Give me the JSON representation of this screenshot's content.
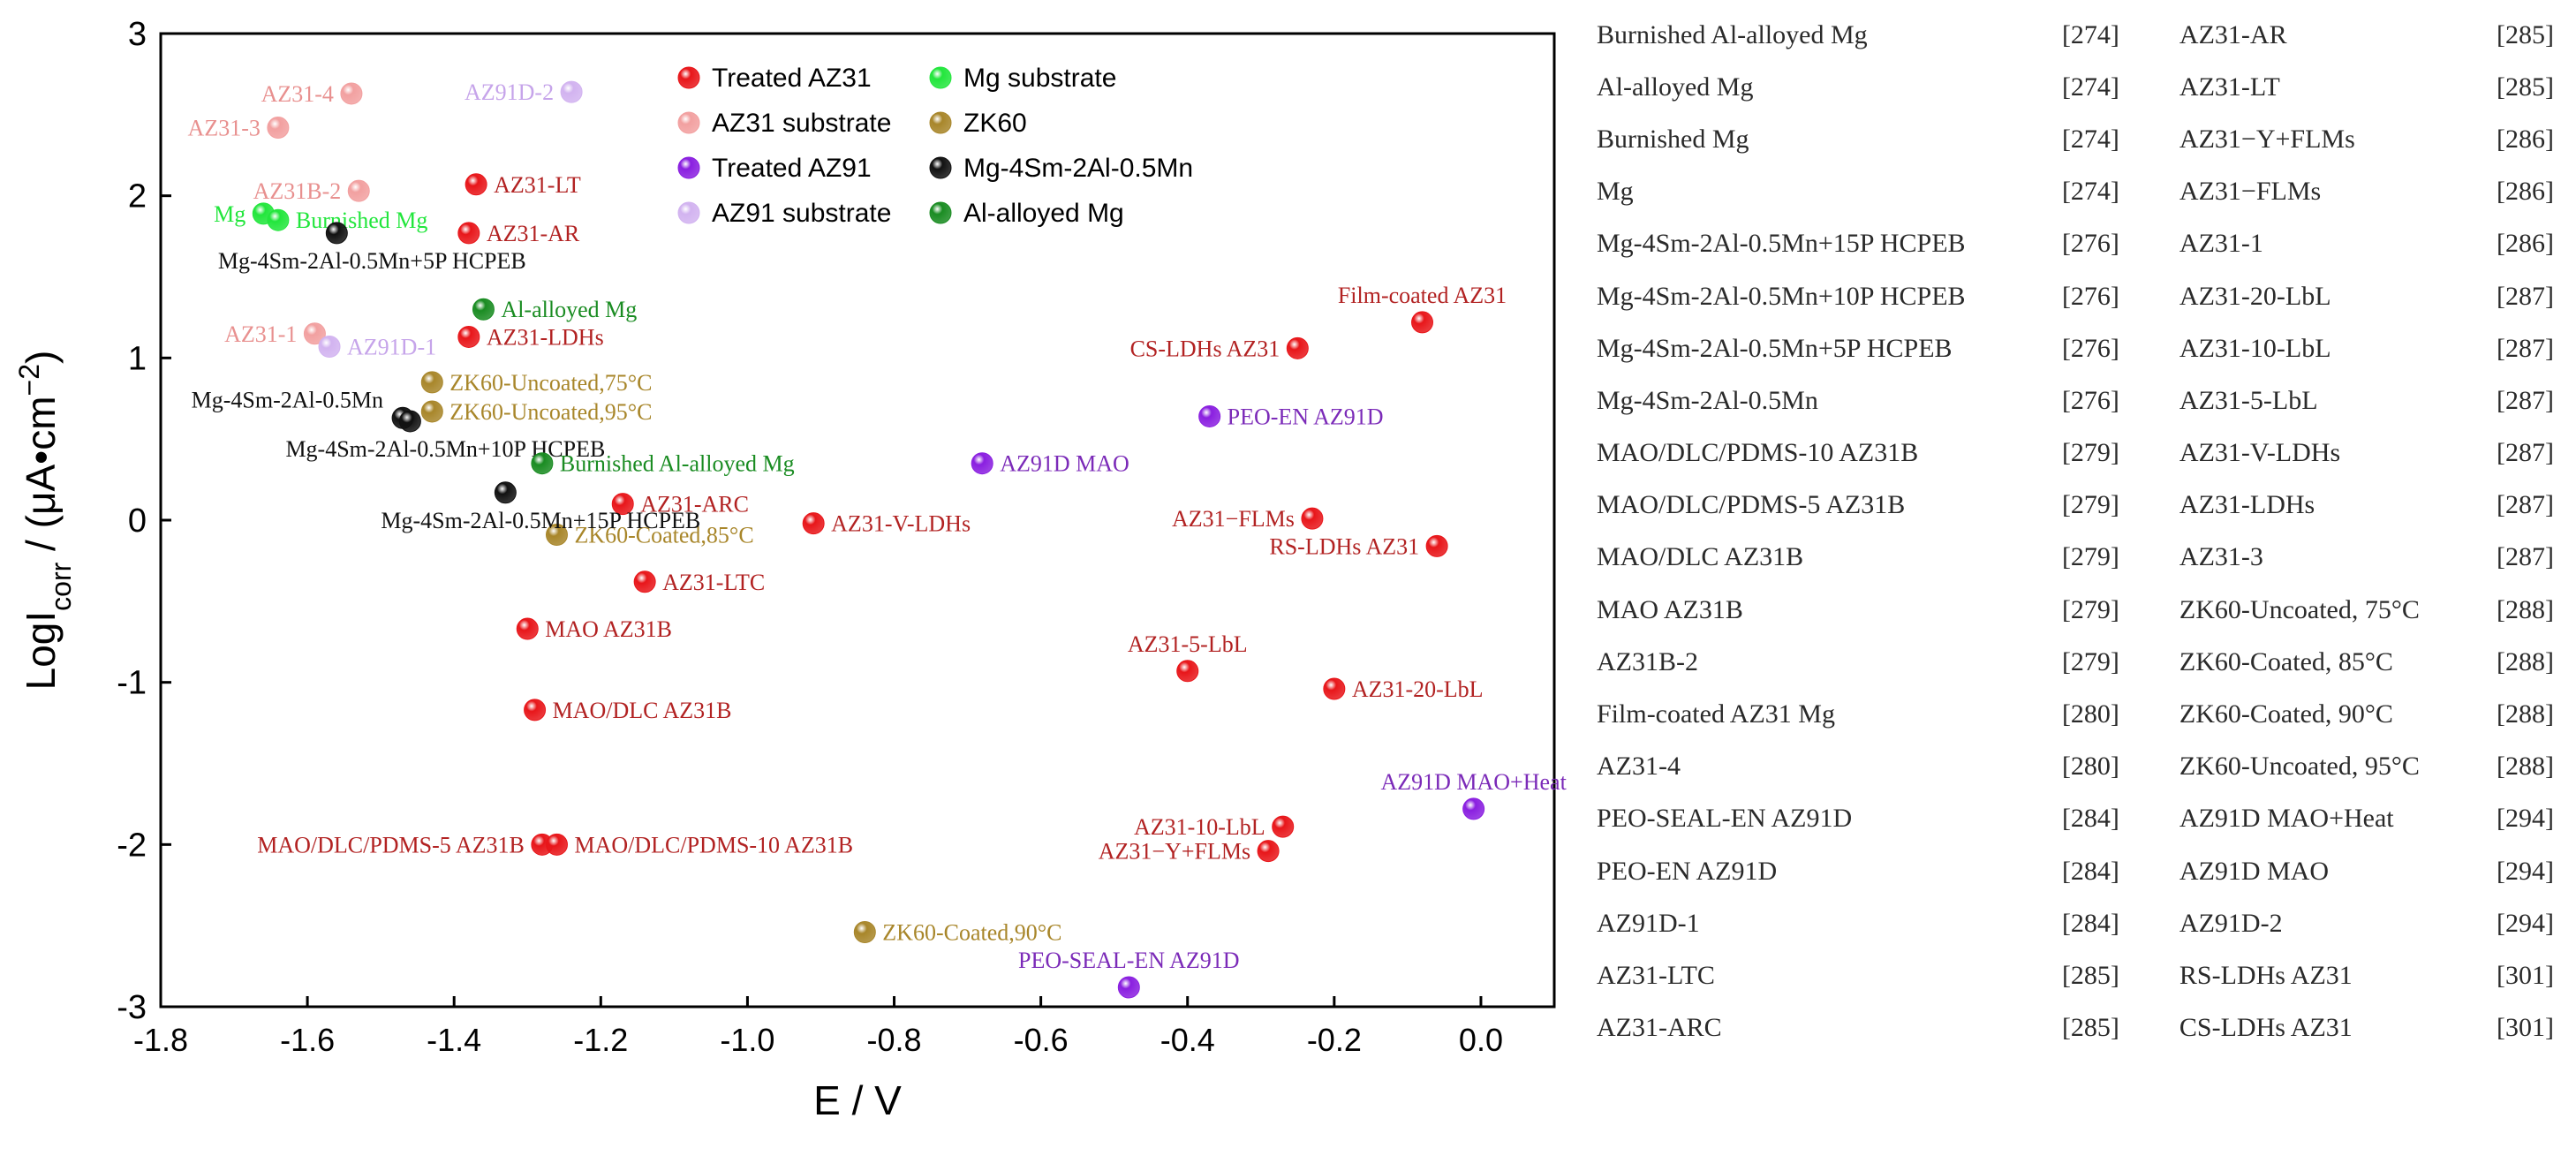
{
  "chart_data": {
    "type": "scatter",
    "xlabel": "E / V",
    "ylabel": "LogI_corr / (μA•cm^-2)",
    "xlim": [
      -1.8,
      0.1
    ],
    "ylim": [
      -3,
      3
    ],
    "xticks": [
      "-1.8",
      "-1.6",
      "-1.4",
      "-1.2",
      "-1.0",
      "-0.8",
      "-0.6",
      "-0.4",
      "-0.2",
      "0.0"
    ],
    "yticks": [
      "3",
      "2",
      "1",
      "0",
      "-1",
      "-2",
      "-3"
    ],
    "grid": false,
    "legend_position": "top-center",
    "legend": [
      {
        "name": "Treated AZ31",
        "color": "#e8161a"
      },
      {
        "name": "AZ31 substrate",
        "color": "#f2a0a0"
      },
      {
        "name": "Treated AZ91",
        "color": "#8a1fe0"
      },
      {
        "name": "AZ91 substrate",
        "color": "#d2b3f0"
      },
      {
        "name": "Mg substrate",
        "color": "#22e63c"
      },
      {
        "name": "ZK60",
        "color": "#a8862a"
      },
      {
        "name": "Mg-4Sm-2Al-0.5Mn",
        "color": "#111111"
      },
      {
        "name": "Al-alloyed Mg",
        "color": "#1a8c22"
      }
    ],
    "series": [
      {
        "name": "Treated AZ31",
        "color": "#e8161a",
        "label_color": "#b22222",
        "points": [
          {
            "label": "AZ31-LT",
            "x": -1.37,
            "y": 2.07,
            "anchor": "right"
          },
          {
            "label": "AZ31-AR",
            "x": -1.38,
            "y": 1.77,
            "anchor": "right"
          },
          {
            "label": "AZ31-LDHs",
            "x": -1.38,
            "y": 1.13,
            "anchor": "right"
          },
          {
            "label": "AZ31-ARC",
            "x": -1.17,
            "y": 0.1,
            "anchor": "right"
          },
          {
            "label": "AZ31-V-LDHs",
            "x": -0.91,
            "y": -0.02,
            "anchor": "right"
          },
          {
            "label": "AZ31-LTC",
            "x": -1.14,
            "y": -0.38,
            "anchor": "right"
          },
          {
            "label": "MAO AZ31B",
            "x": -1.3,
            "y": -0.67,
            "anchor": "right"
          },
          {
            "label": "MAO/DLC AZ31B",
            "x": -1.29,
            "y": -1.17,
            "anchor": "right"
          },
          {
            "label": "MAO/DLC/PDMS-5 AZ31B",
            "x": -1.28,
            "y": -2.0,
            "anchor": "left"
          },
          {
            "label": "MAO/DLC/PDMS-10 AZ31B",
            "x": -1.26,
            "y": -2.0,
            "anchor": "right"
          },
          {
            "label": "Film-coated AZ31",
            "x": -0.08,
            "y": 1.22,
            "anchor": "above"
          },
          {
            "label": "CS-LDHs AZ31",
            "x": -0.25,
            "y": 1.06,
            "anchor": "left"
          },
          {
            "label": "AZ31−FLMs",
            "x": -0.23,
            "y": 0.01,
            "anchor": "left"
          },
          {
            "label": "RS-LDHs AZ31",
            "x": -0.06,
            "y": -0.16,
            "anchor": "left"
          },
          {
            "label": "AZ31-5-LbL",
            "x": -0.4,
            "y": -0.93,
            "anchor": "above"
          },
          {
            "label": "AZ31-20-LbL",
            "x": -0.2,
            "y": -1.04,
            "anchor": "right"
          },
          {
            "label": "AZ31-10-LbL",
            "x": -0.27,
            "y": -1.89,
            "anchor": "left"
          },
          {
            "label": "AZ31−Y+FLMs",
            "x": -0.29,
            "y": -2.04,
            "anchor": "left"
          }
        ]
      },
      {
        "name": "AZ31 substrate",
        "color": "#f2a0a0",
        "label_color": "#e8908f",
        "points": [
          {
            "label": "AZ31-4",
            "x": -1.54,
            "y": 2.63,
            "anchor": "left"
          },
          {
            "label": "AZ31-3",
            "x": -1.64,
            "y": 2.42,
            "anchor": "left"
          },
          {
            "label": "AZ31B-2",
            "x": -1.53,
            "y": 2.03,
            "anchor": "left"
          },
          {
            "label": "AZ31-1",
            "x": -1.59,
            "y": 1.15,
            "anchor": "left"
          }
        ]
      },
      {
        "name": "Treated AZ91",
        "color": "#8a1fe0",
        "label_color": "#7b2ab8",
        "points": [
          {
            "label": "PEO-EN AZ91D",
            "x": -0.37,
            "y": 0.64,
            "anchor": "right"
          },
          {
            "label": "AZ91D MAO",
            "x": -0.68,
            "y": 0.35,
            "anchor": "right"
          },
          {
            "label": "AZ91D MAO+Heat",
            "x": -0.01,
            "y": -1.78,
            "anchor": "above"
          },
          {
            "label": "PEO-SEAL-EN AZ91D",
            "x": -0.48,
            "y": -2.88,
            "anchor": "above"
          }
        ]
      },
      {
        "name": "AZ91 substrate",
        "color": "#d2b3f0",
        "label_color": "#c6a4ea",
        "points": [
          {
            "label": "AZ91D-2",
            "x": -1.24,
            "y": 2.64,
            "anchor": "left"
          },
          {
            "label": "AZ91D-1",
            "x": -1.57,
            "y": 1.07,
            "anchor": "right"
          }
        ]
      },
      {
        "name": "Mg substrate",
        "color": "#22e63c",
        "label_color": "#22e63c",
        "points": [
          {
            "label": "Mg",
            "x": -1.66,
            "y": 1.89,
            "anchor": "left"
          },
          {
            "label": "Burnished Mg",
            "x": -1.64,
            "y": 1.85,
            "anchor": "right"
          }
        ]
      },
      {
        "name": "ZK60",
        "color": "#a8862a",
        "label_color": "#a8862a",
        "points": [
          {
            "label": "ZK60-Uncoated,75°C",
            "x": -1.43,
            "y": 0.85,
            "anchor": "right"
          },
          {
            "label": "ZK60-Uncoated,95°C",
            "x": -1.43,
            "y": 0.67,
            "anchor": "right"
          },
          {
            "label": "ZK60-Coated,85°C",
            "x": -1.26,
            "y": -0.09,
            "anchor": "right"
          },
          {
            "label": "ZK60-Coated,90°C",
            "x": -0.84,
            "y": -2.54,
            "anchor": "right"
          }
        ]
      },
      {
        "name": "Mg-4Sm-2Al-0.5Mn",
        "color": "#111111",
        "label_color": "#111111",
        "points": [
          {
            "label": "Mg-4Sm-2Al-0.5Mn+5P HCPEB",
            "x": -1.56,
            "y": 1.77,
            "anchor": "below"
          },
          {
            "label": "Mg-4Sm-2Al-0.5Mn",
            "x": -1.47,
            "y": 0.63,
            "anchor": "above-left"
          },
          {
            "label": "Mg-4Sm-2Al-0.5Mn+10P HCPEB",
            "x": -1.46,
            "y": 0.61,
            "anchor": "below"
          },
          {
            "label": "Mg-4Sm-2Al-0.5Mn+15P HCPEB",
            "x": -1.33,
            "y": 0.17,
            "anchor": "below"
          }
        ]
      },
      {
        "name": "Al-alloyed Mg",
        "color": "#1a8c22",
        "label_color": "#1a8c22",
        "points": [
          {
            "label": "Al-alloyed Mg",
            "x": -1.36,
            "y": 1.3,
            "anchor": "right"
          },
          {
            "label": "Burnished Al-alloyed Mg",
            "x": -1.28,
            "y": 0.35,
            "anchor": "right"
          }
        ]
      }
    ]
  },
  "reference_table": [
    {
      "name": "Burnished Al-alloyed Mg",
      "ref": "[274]",
      "name2": "AZ31-AR",
      "ref2": "[285]"
    },
    {
      "name": "Al-alloyed Mg",
      "ref": "[274]",
      "name2": "AZ31-LT",
      "ref2": "[285]"
    },
    {
      "name": "Burnished Mg",
      "ref": "[274]",
      "name2": "AZ31−Y+FLMs",
      "ref2": "[286]"
    },
    {
      "name": "Mg",
      "ref": "[274]",
      "name2": "AZ31−FLMs",
      "ref2": "[286]"
    },
    {
      "name": "Mg-4Sm-2Al-0.5Mn+15P HCPEB",
      "ref": "[276]",
      "name2": "AZ31-1",
      "ref2": "[286]"
    },
    {
      "name": "Mg-4Sm-2Al-0.5Mn+10P HCPEB",
      "ref": "[276]",
      "name2": "AZ31-20-LbL",
      "ref2": "[287]"
    },
    {
      "name": "Mg-4Sm-2Al-0.5Mn+5P HCPEB",
      "ref": "[276]",
      "name2": "AZ31-10-LbL",
      "ref2": "[287]"
    },
    {
      "name": "Mg-4Sm-2Al-0.5Mn",
      "ref": "[276]",
      "name2": "AZ31-5-LbL",
      "ref2": "[287]"
    },
    {
      "name": "MAO/DLC/PDMS-10 AZ31B",
      "ref": "[279]",
      "name2": "AZ31-V-LDHs",
      "ref2": "[287]"
    },
    {
      "name": "MAO/DLC/PDMS-5 AZ31B",
      "ref": "[279]",
      "name2": "AZ31-LDHs",
      "ref2": "[287]"
    },
    {
      "name": "MAO/DLC AZ31B",
      "ref": "[279]",
      "name2": "AZ31-3",
      "ref2": "[287]"
    },
    {
      "name": "MAO AZ31B",
      "ref": "[279]",
      "name2": "ZK60-Uncoated, 75°C",
      "ref2": "[288]"
    },
    {
      "name": "AZ31B-2",
      "ref": "[279]",
      "name2": "ZK60-Coated, 85°C",
      "ref2": "[288]"
    },
    {
      "name": "Film-coated AZ31 Mg",
      "ref": "[280]",
      "name2": "ZK60-Coated, 90°C",
      "ref2": "[288]"
    },
    {
      "name": "AZ31-4",
      "ref": "[280]",
      "name2": "ZK60-Uncoated, 95°C",
      "ref2": "[288]"
    },
    {
      "name": "PEO-SEAL-EN AZ91D",
      "ref": "[284]",
      "name2": "AZ91D MAO+Heat",
      "ref2": "[294]"
    },
    {
      "name": "PEO-EN AZ91D",
      "ref": "[284]",
      "name2": "AZ91D MAO",
      "ref2": "[294]"
    },
    {
      "name": "AZ91D-1",
      "ref": "[284]",
      "name2": "AZ91D-2",
      "ref2": "[294]"
    },
    {
      "name": "AZ31-LTC",
      "ref": "[285]",
      "name2": "RS-LDHs AZ31",
      "ref2": "[301]"
    },
    {
      "name": "AZ31-ARC",
      "ref": "[285]",
      "name2": "CS-LDHs AZ31",
      "ref2": "[301]"
    }
  ]
}
